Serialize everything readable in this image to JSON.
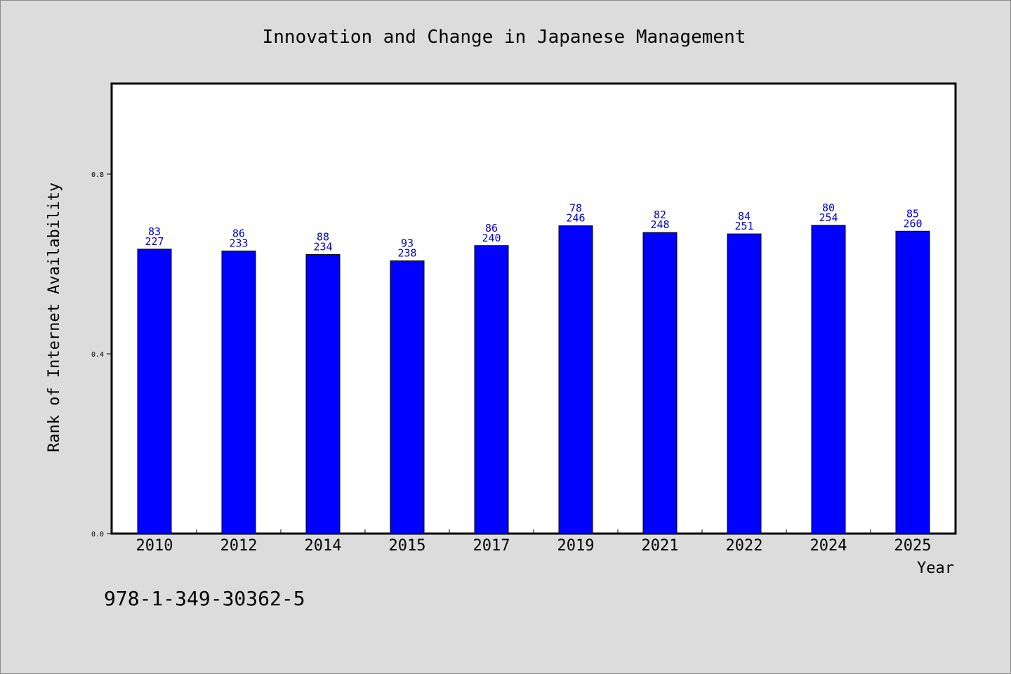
{
  "chart_data": {
    "type": "bar",
    "title": "Innovation and Change in Japanese Management",
    "xlabel": "Year",
    "ylabel": "Rank of Internet Availability",
    "categories": [
      "2010",
      "2012",
      "2014",
      "2015",
      "2017",
      "2019",
      "2021",
      "2022",
      "2024",
      "2025"
    ],
    "values": [
      0.633,
      0.629,
      0.621,
      0.607,
      0.641,
      0.685,
      0.67,
      0.667,
      0.686,
      0.673
    ],
    "labels_top": [
      "83",
      "86",
      "88",
      "93",
      "86",
      "78",
      "82",
      "84",
      "80",
      "85"
    ],
    "labels_bottom": [
      "227",
      "233",
      "234",
      "238",
      "240",
      "246",
      "248",
      "251",
      "254",
      "260"
    ],
    "ylim": [
      0.0,
      1.0
    ],
    "yticks": [
      0.0,
      0.4,
      0.8
    ],
    "ytick_labels": [
      "0.0",
      "0.4",
      "0.8"
    ],
    "grid": false,
    "bar_color": "#0000ff",
    "label_color": "#0000cc",
    "background": "#dcdcdc",
    "plot_background": "#ffffff"
  },
  "footer_text": "978-1-349-30362-5"
}
